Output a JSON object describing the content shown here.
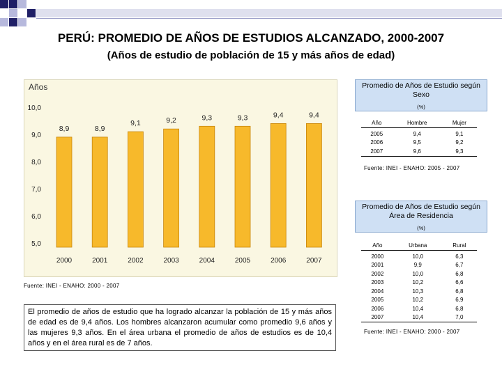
{
  "page": {
    "title": "PERÚ: PROMEDIO DE AÑOS DE ESTUDIOS ALCANZADO, 2000-2007",
    "subtitle": "(Años de estudio de población de 15 y más años de edad)",
    "description": "El promedio de años de estudio que ha logrado alcanzar la población de 15 y más años de edad es de 9,4 años. Los hombres alcanzaron acumular como promedio 9,6 años y las mujeres 9,3 años. En el área urbana el promedio de años de estudios es de 10,4 años y en el área rural es de 7 años."
  },
  "colors": {
    "bar": "#f7b92b",
    "bar_dark": "#c7860c",
    "panel": "#faf7e2",
    "box": "#cfe0f4",
    "deco_dark": "#1f1f66",
    "deco_light": "#b7b9dd"
  },
  "chart_data": [
    {
      "type": "bar",
      "ylabel": "Años",
      "categories": [
        "2000",
        "2001",
        "2002",
        "2003",
        "2004",
        "2005",
        "2006",
        "2007"
      ],
      "values": [
        8.9,
        8.9,
        9.1,
        9.2,
        9.3,
        9.3,
        9.4,
        9.4
      ],
      "value_labels": [
        "8,9",
        "8,9",
        "9,1",
        "9,2",
        "9,3",
        "9,3",
        "9,4",
        "9,4"
      ],
      "yticks": [
        5.0,
        6.0,
        7.0,
        8.0,
        9.0,
        10.0
      ],
      "ytick_labels": [
        "5,0",
        "6,0",
        "7,0",
        "8,0",
        "9,0",
        "10,0"
      ],
      "ylim": [
        5.0,
        10.0
      ],
      "grid": false,
      "source": "Fuente: INEI - ENAHO: 2000 - 2007"
    },
    {
      "type": "table",
      "title": "Promedio de Años de Estudio según Sexo",
      "unit": "(%)",
      "columns": [
        "Año",
        "Hombre",
        "Mujer"
      ],
      "rows": [
        [
          "2005",
          "9,4",
          "9,1"
        ],
        [
          "2006",
          "9,5",
          "9,2"
        ],
        [
          "2007",
          "9,6",
          "9,3"
        ]
      ],
      "source": "Fuente: INEI - ENAHO: 2005 - 2007"
    },
    {
      "type": "table",
      "title": "Promedio de Años de Estudio según Área de Residencia",
      "unit": "(%)",
      "columns": [
        "Año",
        "Urbana",
        "Rural"
      ],
      "rows": [
        [
          "2000",
          "10,0",
          "6,3"
        ],
        [
          "2001",
          "9,9",
          "6,7"
        ],
        [
          "2002",
          "10,0",
          "6,8"
        ],
        [
          "2003",
          "10,2",
          "6,6"
        ],
        [
          "2004",
          "10,3",
          "6,8"
        ],
        [
          "2005",
          "10,2",
          "6,9"
        ],
        [
          "2006",
          "10,4",
          "6,8"
        ],
        [
          "2007",
          "10,4",
          "7,0"
        ]
      ],
      "source": "Fuente: INEI - ENAHO: 2000 - 2007"
    }
  ]
}
